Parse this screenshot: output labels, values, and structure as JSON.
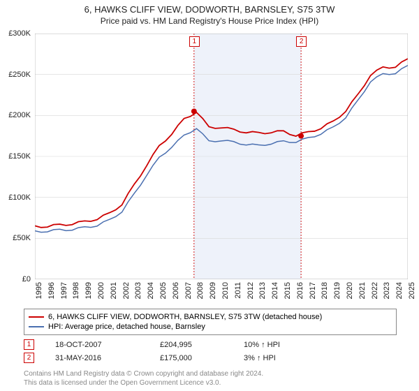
{
  "title": "6, HAWKS CLIFF VIEW, DODWORTH, BARNSLEY, S75 3TW",
  "subtitle": "Price paid vs. HM Land Registry's House Price Index (HPI)",
  "chart": {
    "type": "line",
    "background_color": "#ffffff",
    "grid_color": "#d8d8d8",
    "band_color": "#eef2fa",
    "y": {
      "min": 0,
      "max": 300000,
      "step": 50000,
      "labels": [
        "£0",
        "£50K",
        "£100K",
        "£150K",
        "£200K",
        "£250K",
        "£300K"
      ],
      "label_fontsize": 11
    },
    "x": {
      "years": [
        1995,
        1996,
        1997,
        1998,
        1999,
        2000,
        2001,
        2002,
        2003,
        2004,
        2005,
        2006,
        2007,
        2008,
        2009,
        2010,
        2011,
        2012,
        2013,
        2014,
        2015,
        2016,
        2017,
        2018,
        2019,
        2020,
        2021,
        2022,
        2023,
        2024,
        2025
      ],
      "label_fontsize": 11
    },
    "red_series": {
      "name": "6, HAWKS CLIFF VIEW, DODWORTH, BARNSLEY, S75 3TW (detached house)",
      "color": "#cc0000",
      "line_width": 1.8,
      "values": [
        64000,
        65000,
        66000,
        68000,
        70000,
        74000,
        80000,
        92000,
        115000,
        140000,
        162000,
        178000,
        195000,
        205000,
        185000,
        186000,
        182000,
        180000,
        178000,
        180000,
        180000,
        176000,
        179000,
        185000,
        192000,
        206000,
        225000,
        250000,
        258000,
        260000,
        268000
      ]
    },
    "blue_series": {
      "name": "HPI: Average price, detached house, Barnsley",
      "color": "#4a6fb0",
      "line_width": 1.5,
      "values": [
        58000,
        59000,
        60000,
        61000,
        63000,
        66000,
        72000,
        83000,
        104000,
        128000,
        148000,
        162000,
        175000,
        185000,
        168000,
        170000,
        167000,
        165000,
        163000,
        166000,
        168000,
        168000,
        172000,
        178000,
        185000,
        198000,
        218000,
        242000,
        250000,
        252000,
        260000
      ]
    },
    "sale_points": {
      "color": "#cc0000",
      "radius": 4,
      "points": [
        {
          "year_frac": 2007.8,
          "value": 204995
        },
        {
          "year_frac": 2016.41,
          "value": 175000
        }
      ]
    },
    "markers": [
      {
        "n": "1",
        "color": "#cc0000",
        "above_year": 2007.8
      },
      {
        "n": "2",
        "color": "#cc0000",
        "above_year": 2016.41
      }
    ],
    "band": {
      "start": 2007.8,
      "end": 2016.41
    }
  },
  "legend": {
    "border_color": "#888888",
    "fontsize": 11,
    "items": [
      {
        "color": "#cc0000",
        "label": "6, HAWKS CLIFF VIEW, DODWORTH, BARNSLEY, S75 3TW (detached house)"
      },
      {
        "color": "#4a6fb0",
        "label": "HPI: Average price, detached house, Barnsley"
      }
    ]
  },
  "sales": [
    {
      "n": "1",
      "color": "#cc0000",
      "date": "18-OCT-2007",
      "price": "£204,995",
      "delta": "10% ↑ HPI"
    },
    {
      "n": "2",
      "color": "#cc0000",
      "date": "31-MAY-2016",
      "price": "£175,000",
      "delta": "3% ↑ HPI"
    }
  ],
  "footer": {
    "l1": "Contains HM Land Registry data © Crown copyright and database right 2024.",
    "l2": "This data is licensed under the Open Government Licence v3.0."
  }
}
